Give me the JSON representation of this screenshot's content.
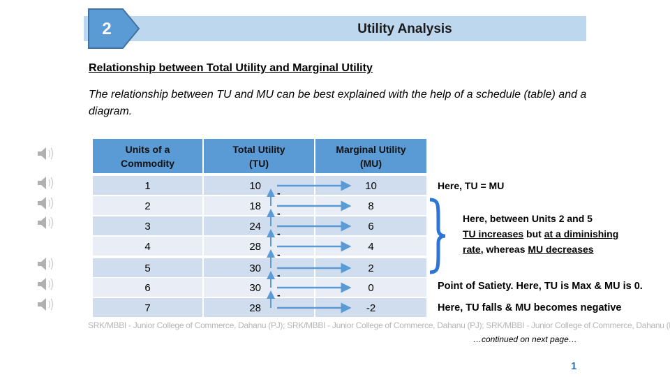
{
  "header": {
    "badge_number": "2",
    "title": "Utility Analysis",
    "bar_color": "#BDD7EE",
    "badge_color": "#5B9BD5"
  },
  "heading": "Relationship between Total Utility and Marginal Utility",
  "intro": "The relationship between TU and MU can be best explained with the help of a schedule (table) and a diagram.",
  "audio_icons": [
    "speaker-icon",
    "speaker-icon",
    "speaker-icon",
    "speaker-icon",
    "speaker-icon",
    "speaker-icon",
    "speaker-icon"
  ],
  "table": {
    "headers": [
      "Units of a Commodity",
      "Total Utility (TU)",
      "Marginal Utility (MU)"
    ],
    "rows": [
      {
        "units": "1",
        "tu": "10",
        "mu": "10"
      },
      {
        "units": "2",
        "tu": "18",
        "mu": "8"
      },
      {
        "units": "3",
        "tu": "24",
        "mu": "6"
      },
      {
        "units": "4",
        "tu": "28",
        "mu": "4"
      },
      {
        "units": "5",
        "tu": "30",
        "mu": "2"
      },
      {
        "units": "6",
        "tu": "30",
        "mu": "0"
      },
      {
        "units": "7",
        "tu": "28",
        "mu": "-2"
      }
    ],
    "minus_sign": "-",
    "header_color": "#5B9BD5",
    "row_colors": [
      "#CFDDEE",
      "#E9EEF6"
    ],
    "arrow_color": "#5B9BD5"
  },
  "notes": {
    "tu_equals_mu": "Here, TU = MU",
    "diminishing": {
      "line1": "Here, between Units 2 and 5",
      "tu_increases": "TU increases",
      "but": " but ",
      "at_a_diminishing": "at a diminishing",
      "rate": "rate",
      "whereas": ", whereas ",
      "mu_decreases": "MU decreases"
    },
    "satiety": "Point of Satiety. Here, TU is Max & MU is 0.",
    "negative": "Here, TU falls & MU becomes negative"
  },
  "footer": "SRK/MBBI - Junior College of Commerce, Dahanu (PJ);   SRK/MBBI - Junior College of Commerce, Dahanu (PJ);   SRK/MBBI - Junior College of Commerce, Dahanu (PJ)",
  "continued": "…continued on next page…",
  "page_number": "1"
}
